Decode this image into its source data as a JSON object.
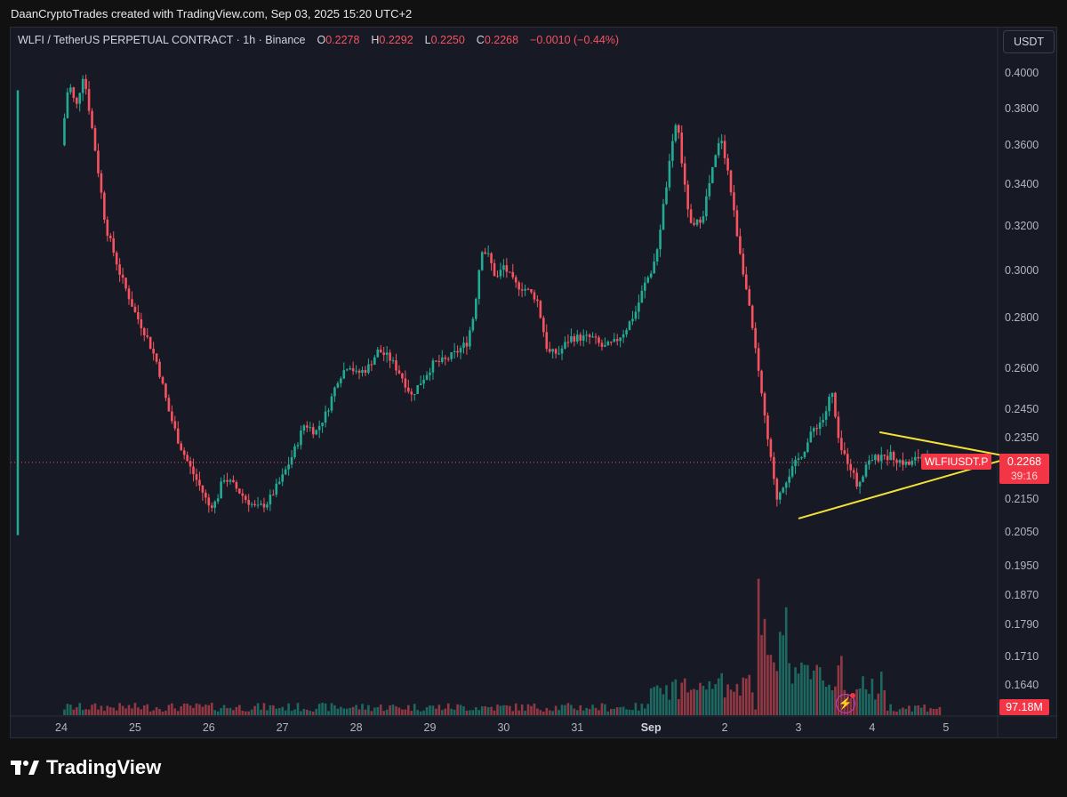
{
  "header": {
    "caption": "DaanCryptoTrades created with TradingView.com, Sep 03, 2025 15:20 UTC+2"
  },
  "legend": {
    "symbol": "WLFI / TetherUS PERPETUAL CONTRACT · 1h · Binance",
    "o_label": "O",
    "o_value": "0.2278",
    "h_label": "H",
    "h_value": "0.2292",
    "l_label": "L",
    "l_value": "0.2250",
    "c_label": "C",
    "c_value": "0.2268",
    "change": "−0.0010 (−0.44%)"
  },
  "axis": {
    "unit": "USDT",
    "price_labels": [
      "0.4000",
      "0.3800",
      "0.3600",
      "0.3400",
      "0.3200",
      "0.3000",
      "0.2800",
      "0.2600",
      "0.2450",
      "0.2350",
      "0.2150",
      "0.2050",
      "0.1950",
      "0.1870",
      "0.1790",
      "0.1710",
      "0.1640"
    ],
    "time_labels": [
      "24",
      "25",
      "26",
      "27",
      "28",
      "29",
      "30",
      "31",
      "Sep",
      "2",
      "3",
      "4",
      "5"
    ]
  },
  "tags": {
    "symbol_tag": "WLFIUSDT.P",
    "last_price": "0.2268",
    "countdown": "39:16",
    "volume": "97.18M"
  },
  "logo": {
    "text": "TradingView"
  },
  "colors": {
    "up": "#22ab94",
    "down": "#f7525f",
    "triangle": "#f5e03a",
    "background": "#171a24"
  },
  "chart_data": {
    "type": "candlestick",
    "interval": "1h",
    "y_scale": "log",
    "ylim": [
      0.16,
      0.415
    ],
    "last_price": 0.2268,
    "x_ticks": [
      "24",
      "25",
      "26",
      "27",
      "28",
      "29",
      "30",
      "31",
      "Sep",
      "2",
      "3",
      "4",
      "5"
    ],
    "close_path": [
      [
        0.0,
        0.36
      ],
      [
        0.1,
        0.395
      ],
      [
        0.2,
        0.38
      ],
      [
        0.3,
        0.4
      ],
      [
        0.45,
        0.36
      ],
      [
        0.6,
        0.32
      ],
      [
        0.8,
        0.298
      ],
      [
        1.0,
        0.282
      ],
      [
        1.15,
        0.273
      ],
      [
        1.3,
        0.262
      ],
      [
        1.45,
        0.245
      ],
      [
        1.6,
        0.233
      ],
      [
        1.75,
        0.225
      ],
      [
        1.9,
        0.218
      ],
      [
        2.0,
        0.213
      ],
      [
        2.1,
        0.214
      ],
      [
        2.2,
        0.222
      ],
      [
        2.35,
        0.219
      ],
      [
        2.5,
        0.215
      ],
      [
        2.65,
        0.212
      ],
      [
        2.8,
        0.214
      ],
      [
        3.0,
        0.222
      ],
      [
        3.15,
        0.23
      ],
      [
        3.3,
        0.24
      ],
      [
        3.45,
        0.237
      ],
      [
        3.6,
        0.244
      ],
      [
        3.75,
        0.256
      ],
      [
        3.9,
        0.262
      ],
      [
        4.0,
        0.258
      ],
      [
        4.15,
        0.26
      ],
      [
        4.3,
        0.267
      ],
      [
        4.45,
        0.264
      ],
      [
        4.6,
        0.258
      ],
      [
        4.75,
        0.25
      ],
      [
        4.9,
        0.256
      ],
      [
        5.05,
        0.262
      ],
      [
        5.2,
        0.263
      ],
      [
        5.35,
        0.266
      ],
      [
        5.5,
        0.27
      ],
      [
        5.6,
        0.282
      ],
      [
        5.7,
        0.31
      ],
      [
        5.8,
        0.306
      ],
      [
        5.9,
        0.296
      ],
      [
        6.0,
        0.302
      ],
      [
        6.15,
        0.294
      ],
      [
        6.3,
        0.292
      ],
      [
        6.45,
        0.288
      ],
      [
        6.6,
        0.266
      ],
      [
        6.75,
        0.266
      ],
      [
        6.9,
        0.272
      ],
      [
        7.05,
        0.272
      ],
      [
        7.2,
        0.272
      ],
      [
        7.35,
        0.268
      ],
      [
        7.5,
        0.27
      ],
      [
        7.65,
        0.275
      ],
      [
        7.8,
        0.283
      ],
      [
        7.9,
        0.293
      ],
      [
        8.05,
        0.303
      ],
      [
        8.15,
        0.325
      ],
      [
        8.25,
        0.35
      ],
      [
        8.35,
        0.375
      ],
      [
        8.45,
        0.34
      ],
      [
        8.55,
        0.318
      ],
      [
        8.7,
        0.325
      ],
      [
        8.85,
        0.35
      ],
      [
        8.95,
        0.365
      ],
      [
        9.05,
        0.345
      ],
      [
        9.15,
        0.32
      ],
      [
        9.25,
        0.3
      ],
      [
        9.4,
        0.27
      ],
      [
        9.55,
        0.24
      ],
      [
        9.7,
        0.215
      ],
      [
        9.8,
        0.22
      ],
      [
        9.95,
        0.226
      ],
      [
        10.1,
        0.232
      ],
      [
        10.2,
        0.238
      ],
      [
        10.35,
        0.242
      ],
      [
        10.45,
        0.252
      ],
      [
        10.55,
        0.232
      ],
      [
        10.7,
        0.226
      ],
      [
        10.8,
        0.219
      ],
      [
        10.95,
        0.228
      ],
      [
        11.1,
        0.228
      ],
      [
        11.25,
        0.229
      ],
      [
        11.4,
        0.227
      ],
      [
        11.5,
        0.226
      ],
      [
        11.65,
        0.229
      ],
      [
        11.8,
        0.227
      ],
      [
        11.95,
        0.2268
      ]
    ],
    "volume_last": "97.18M",
    "annotation": {
      "type": "symmetrical triangle",
      "upper_line": [
        [
          11.1,
          0.237
        ],
        [
          12.9,
          0.2285
        ]
      ],
      "lower_line": [
        [
          10.0,
          0.209
        ],
        [
          12.9,
          0.2285
        ]
      ]
    }
  }
}
